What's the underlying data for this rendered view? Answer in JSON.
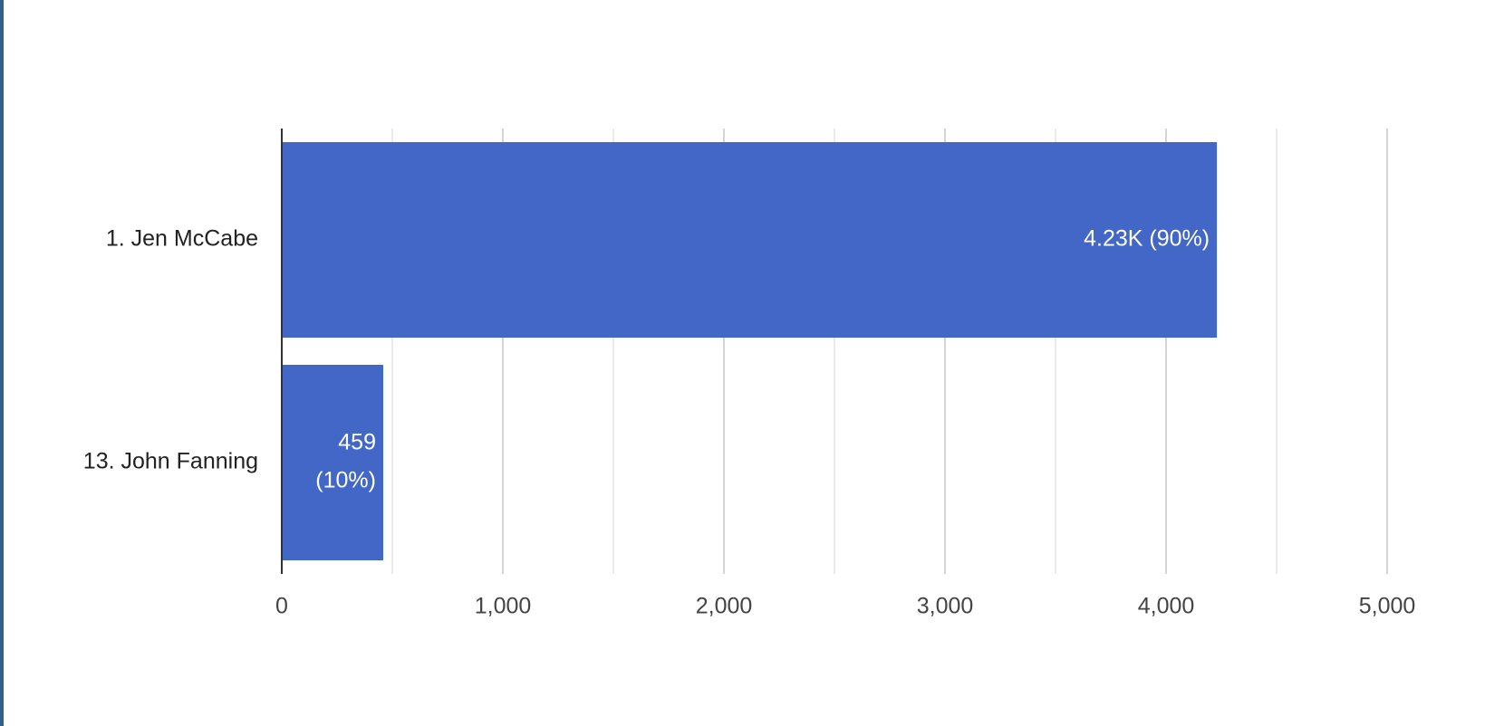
{
  "chart_data": {
    "type": "bar",
    "orientation": "horizontal",
    "categories": [
      "1. Jen McCabe",
      "13. John Fanning"
    ],
    "values": [
      4230,
      459
    ],
    "data_labels": [
      [
        "4.23K (90%)"
      ],
      [
        "459",
        "(10%)"
      ]
    ],
    "title": "",
    "xlabel": "",
    "ylabel": "",
    "xlim": [
      0,
      5000
    ],
    "major_ticks": [
      0,
      1000,
      2000,
      3000,
      4000,
      5000
    ],
    "major_tick_labels": [
      "0",
      "1,000",
      "2,000",
      "3,000",
      "4,000",
      "5,000"
    ],
    "minor_ticks": [
      500,
      1500,
      2500,
      3500,
      4500
    ],
    "grid": true,
    "legend": "none",
    "colors": {
      "bar": "#4267c6",
      "major_grid": "#c7c7c7",
      "minor_grid": "#e4e4e4",
      "axis": "#333333",
      "category_text": "#222222",
      "tick_text": "#444444",
      "data_label_text": "#ffffff",
      "border": "#2f5f8a"
    }
  }
}
